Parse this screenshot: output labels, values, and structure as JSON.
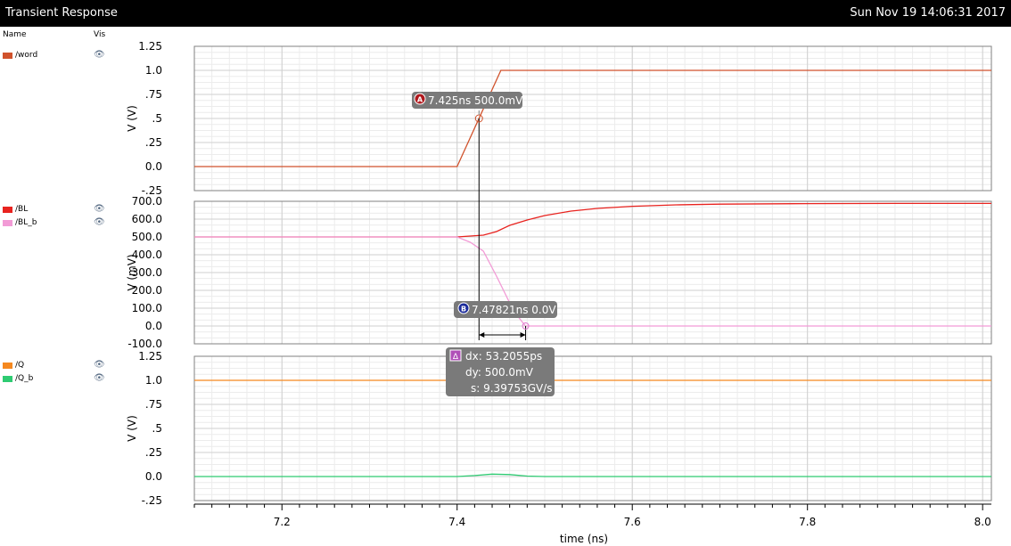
{
  "window": {
    "title": "Transient Response",
    "datetime": "Sun Nov 19 14:06:31 2017"
  },
  "legend": {
    "name_header": "Name",
    "vis_header": "Vis"
  },
  "colors": {
    "word": "#d0522c",
    "BL": "#e8231f",
    "BL_b": "#f29bd6",
    "Q": "#f5881f",
    "Q_b": "#2ecb72"
  },
  "chart_data": {
    "type": "line",
    "xlabel": "time (ns)",
    "xlim": [
      7.1,
      8.01
    ],
    "x_ticks": [
      "7.2",
      "7.4",
      "7.6",
      "7.8",
      "8.0"
    ],
    "panels": [
      {
        "ylabel": "V (V)",
        "ylim": [
          -0.25,
          1.25
        ],
        "y_ticks": [
          {
            "v": 1.25,
            "label": "1.25"
          },
          {
            "v": 1.0,
            "label": "1.0"
          },
          {
            "v": 0.75,
            "label": ".75"
          },
          {
            "v": 0.5,
            "label": ".5"
          },
          {
            "v": 0.25,
            "label": ".25"
          },
          {
            "v": 0.0,
            "label": "0.0"
          },
          {
            "v": -0.25,
            "label": "-.25"
          }
        ],
        "series": [
          {
            "name": "/word",
            "color_key": "word",
            "x": [
              7.1,
              7.4,
              7.45,
              8.01
            ],
            "y": [
              0,
              0,
              1.0,
              1.0
            ]
          }
        ]
      },
      {
        "ylabel": "V (mV)",
        "ylim": [
          -100,
          700
        ],
        "y_ticks": [
          {
            "v": 700,
            "label": "700.0"
          },
          {
            "v": 600,
            "label": "600.0"
          },
          {
            "v": 500,
            "label": "500.0"
          },
          {
            "v": 400,
            "label": "400.0"
          },
          {
            "v": 300,
            "label": "300.0"
          },
          {
            "v": 200,
            "label": "200.0"
          },
          {
            "v": 100,
            "label": "100.0"
          },
          {
            "v": 0,
            "label": "0.0"
          },
          {
            "v": -100,
            "label": "-100.0"
          }
        ],
        "series": [
          {
            "name": "/BL",
            "color_key": "BL",
            "x": [
              7.1,
              7.4,
              7.415,
              7.43,
              7.445,
              7.46,
              7.48,
              7.5,
              7.53,
              7.56,
              7.6,
              7.65,
              7.7,
              7.8,
              7.9,
              8.01
            ],
            "y": [
              500,
              500,
              505,
              510,
              530,
              565,
              595,
              620,
              645,
              660,
              672,
              680,
              684,
              687,
              688,
              688
            ]
          },
          {
            "name": "/BL_b",
            "color_key": "BL_b",
            "x": [
              7.1,
              7.4,
              7.415,
              7.43,
              7.445,
              7.46,
              7.47,
              7.478,
              7.49,
              7.5,
              8.01
            ],
            "y": [
              500,
              500,
              470,
              420,
              280,
              130,
              50,
              0,
              0,
              0,
              0
            ]
          }
        ]
      },
      {
        "ylabel": "V (V)",
        "ylim": [
          -0.25,
          1.25
        ],
        "y_ticks": [
          {
            "v": 1.25,
            "label": "1.25"
          },
          {
            "v": 1.0,
            "label": "1.0"
          },
          {
            "v": 0.75,
            "label": ".75"
          },
          {
            "v": 0.5,
            "label": ".5"
          },
          {
            "v": 0.25,
            "label": ".25"
          },
          {
            "v": 0.0,
            "label": "0.0"
          },
          {
            "v": -0.25,
            "label": "-.25"
          }
        ],
        "series": [
          {
            "name": "/Q",
            "color_key": "Q",
            "x": [
              7.1,
              8.01
            ],
            "y": [
              1.0,
              1.0
            ]
          },
          {
            "name": "/Q_b",
            "color_key": "Q_b",
            "x": [
              7.1,
              7.4,
              7.42,
              7.44,
              7.46,
              7.48,
              7.5,
              7.6,
              8.01
            ],
            "y": [
              0,
              0,
              0.01,
              0.025,
              0.02,
              0.005,
              0,
              0,
              0
            ]
          }
        ]
      }
    ],
    "marker_a": {
      "id": "A",
      "label": "7.425ns 500.0mV",
      "x": 7.425,
      "y": 0.5,
      "panel": 0
    },
    "marker_b": {
      "id": "B",
      "label": "7.47821ns 0.0V",
      "x": 7.47821,
      "y": 0,
      "panel": 1
    },
    "delta": {
      "id": "Δ",
      "dx": "dx: 53.2055ps",
      "dy": "dy: 500.0mV",
      "s": "s: 9.39753GV/s"
    }
  }
}
